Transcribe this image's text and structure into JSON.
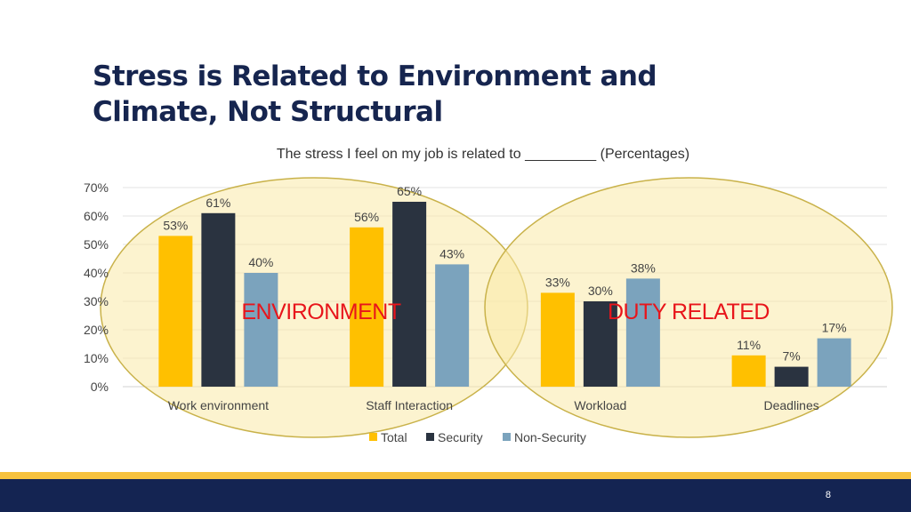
{
  "slide": {
    "title_line1": "Stress is Related to Environment and",
    "title_line2": "Climate, Not Structural",
    "page_number": "8"
  },
  "annotations": {
    "environment": "ENVIRONMENT",
    "duty_related": "DUTY RELATED"
  },
  "colors": {
    "title": "#16254f",
    "callout_red": "#e8151b",
    "circle_fill": "#f9e9a8",
    "circle_stroke": "#c9b24a",
    "footer_navy": "#142452",
    "footer_gold": "#f6c23e"
  },
  "chart_data": {
    "type": "bar",
    "title": "The stress I feel on my job is related to _________ (Percentages)",
    "categories": [
      "Work environment",
      "Staff Interaction",
      "Workload",
      "Deadlines"
    ],
    "series": [
      {
        "name": "Total",
        "values": [
          53,
          56,
          33,
          11
        ],
        "color": "#ffc000"
      },
      {
        "name": "Security",
        "values": [
          61,
          65,
          30,
          7
        ],
        "color": "#2a3340"
      },
      {
        "name": "Non-Security",
        "values": [
          40,
          43,
          38,
          17
        ],
        "color": "#7ba3bd"
      }
    ],
    "value_labels": [
      [
        "53%",
        "56%",
        "33%",
        "11%"
      ],
      [
        "61%",
        "65%",
        "30%",
        "7%"
      ],
      [
        "40%",
        "43%",
        "38%",
        "17%"
      ]
    ],
    "y_ticks": [
      "0%",
      "10%",
      "20%",
      "30%",
      "40%",
      "50%",
      "60%",
      "70%"
    ],
    "ylim": [
      0,
      70
    ],
    "grid": true,
    "legend": "bottom"
  }
}
